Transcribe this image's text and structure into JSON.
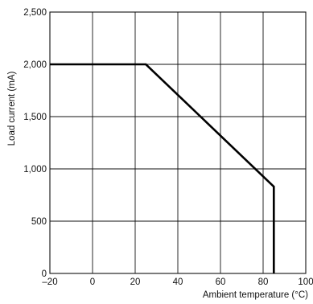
{
  "chart_data": {
    "type": "line",
    "xlabel": "Ambient temperature (°C)",
    "ylabel": "Load current (mA)",
    "xlim": [
      -20,
      100
    ],
    "ylim": [
      0,
      2500
    ],
    "x_ticks": [
      -20,
      0,
      20,
      40,
      60,
      80,
      100
    ],
    "x_tick_labels": [
      "–20",
      "0",
      "20",
      "40",
      "60",
      "80",
      "100"
    ],
    "y_ticks": [
      0,
      500,
      1000,
      1500,
      2000,
      2500
    ],
    "y_tick_labels": [
      "0",
      "500",
      "1,000",
      "1,500",
      "2,000",
      "2,500"
    ],
    "grid": true,
    "series": [
      {
        "x": [
          -20,
          25,
          85,
          85
        ],
        "y": [
          2000,
          2000,
          830,
          0
        ]
      }
    ]
  }
}
